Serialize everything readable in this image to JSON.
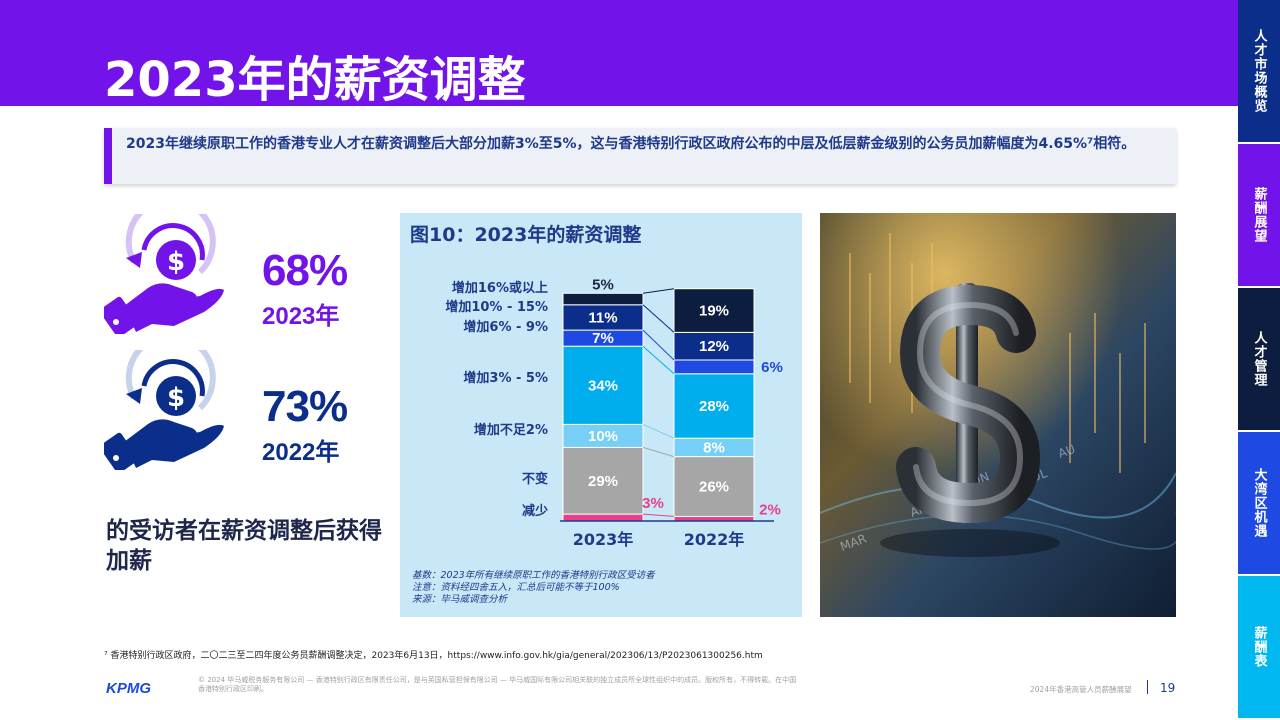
{
  "page": {
    "title": "2023年的薪资调整",
    "intro": "2023年继续原职工作的香港专业人才在薪资调整后大部分加薪3%至5%，这与香港特别行政区政府公布的中层及低层薪金级别的公务员加薪幅度为4.65%⁷相符。"
  },
  "side_tabs": [
    {
      "label": "人才市场概览",
      "color": "#0b2e8a"
    },
    {
      "label": "薪酬展望",
      "color": "#7213ea"
    },
    {
      "label": "人才管理",
      "color": "#0d1d40"
    },
    {
      "label": "大湾区机遇",
      "color": "#1e49e2"
    },
    {
      "label": "薪酬表",
      "color": "#00b7f0"
    }
  ],
  "stats": [
    {
      "pct": "68%",
      "year": "2023年",
      "color": "#7213ea",
      "icon": "salary-hand-icon"
    },
    {
      "pct": "73%",
      "year": "2022年",
      "color": "#0b2e8a",
      "icon": "salary-hand-icon"
    }
  ],
  "left_caption": "的受访者在薪资调整后获得加薪",
  "chart_data": {
    "type": "bar",
    "stacked": true,
    "title": "图10：2023年的薪资调整",
    "categories": [
      "2023年",
      "2022年"
    ],
    "series": [
      {
        "name": "减少",
        "values": [
          3,
          2
        ],
        "color": "#e8408c",
        "labels": [
          "3%",
          "2%"
        ]
      },
      {
        "name": "不变",
        "values": [
          29,
          26
        ],
        "color": "#a6a6a6",
        "labels": [
          "29%",
          "26%"
        ]
      },
      {
        "name": "增加不足2%",
        "values": [
          10,
          8
        ],
        "color": "#76cff6",
        "labels": [
          "10%",
          "8%"
        ]
      },
      {
        "name": "增加3% - 5%",
        "values": [
          34,
          28
        ],
        "color": "#00aeee",
        "labels": [
          "34%",
          "28%"
        ]
      },
      {
        "name": "增加6% - 9%",
        "values": [
          7,
          6
        ],
        "color": "#1e49e2",
        "labels": [
          "7%",
          "6%"
        ]
      },
      {
        "name": "增加10% - 15%",
        "values": [
          11,
          12
        ],
        "color": "#0b2e8a",
        "labels": [
          "11%",
          "12%"
        ]
      },
      {
        "name": "增加16%或以上",
        "values": [
          5,
          19
        ],
        "color": "#0d1d40",
        "labels": [
          "5%",
          "19%"
        ]
      }
    ],
    "notes": [
      "基数：2023年所有继续原职工作的香港特别行政区受访者",
      "注意：资料经四舍五入，汇总后可能不等于100%",
      "来源：毕马威调查分析"
    ]
  },
  "photo": {
    "text_marks": [
      "MAR",
      "JUN",
      "JUL",
      "AU",
      "AP"
    ]
  },
  "footer": {
    "footnote": "⁷ 香港特别行政区政府，二〇二三至二四年度公务员薪酬调整决定，2023年6月13日，https://www.info.gov.hk/gia/general/202306/13/P2023061300256.htm",
    "logo": "KPMG",
    "legal": "© 2024 毕马威税务服务有限公司 — 香港特别行政区有限责任公司，是与英国私营担保有限公司 — 毕马威国际有限公司相关联的独立成员所全球性组织中的成员。版权所有，不得转载。在中国香港特别行政区印刷。",
    "doc_title": "2024年香港高管人员薪酬展望",
    "page_number": "19"
  }
}
